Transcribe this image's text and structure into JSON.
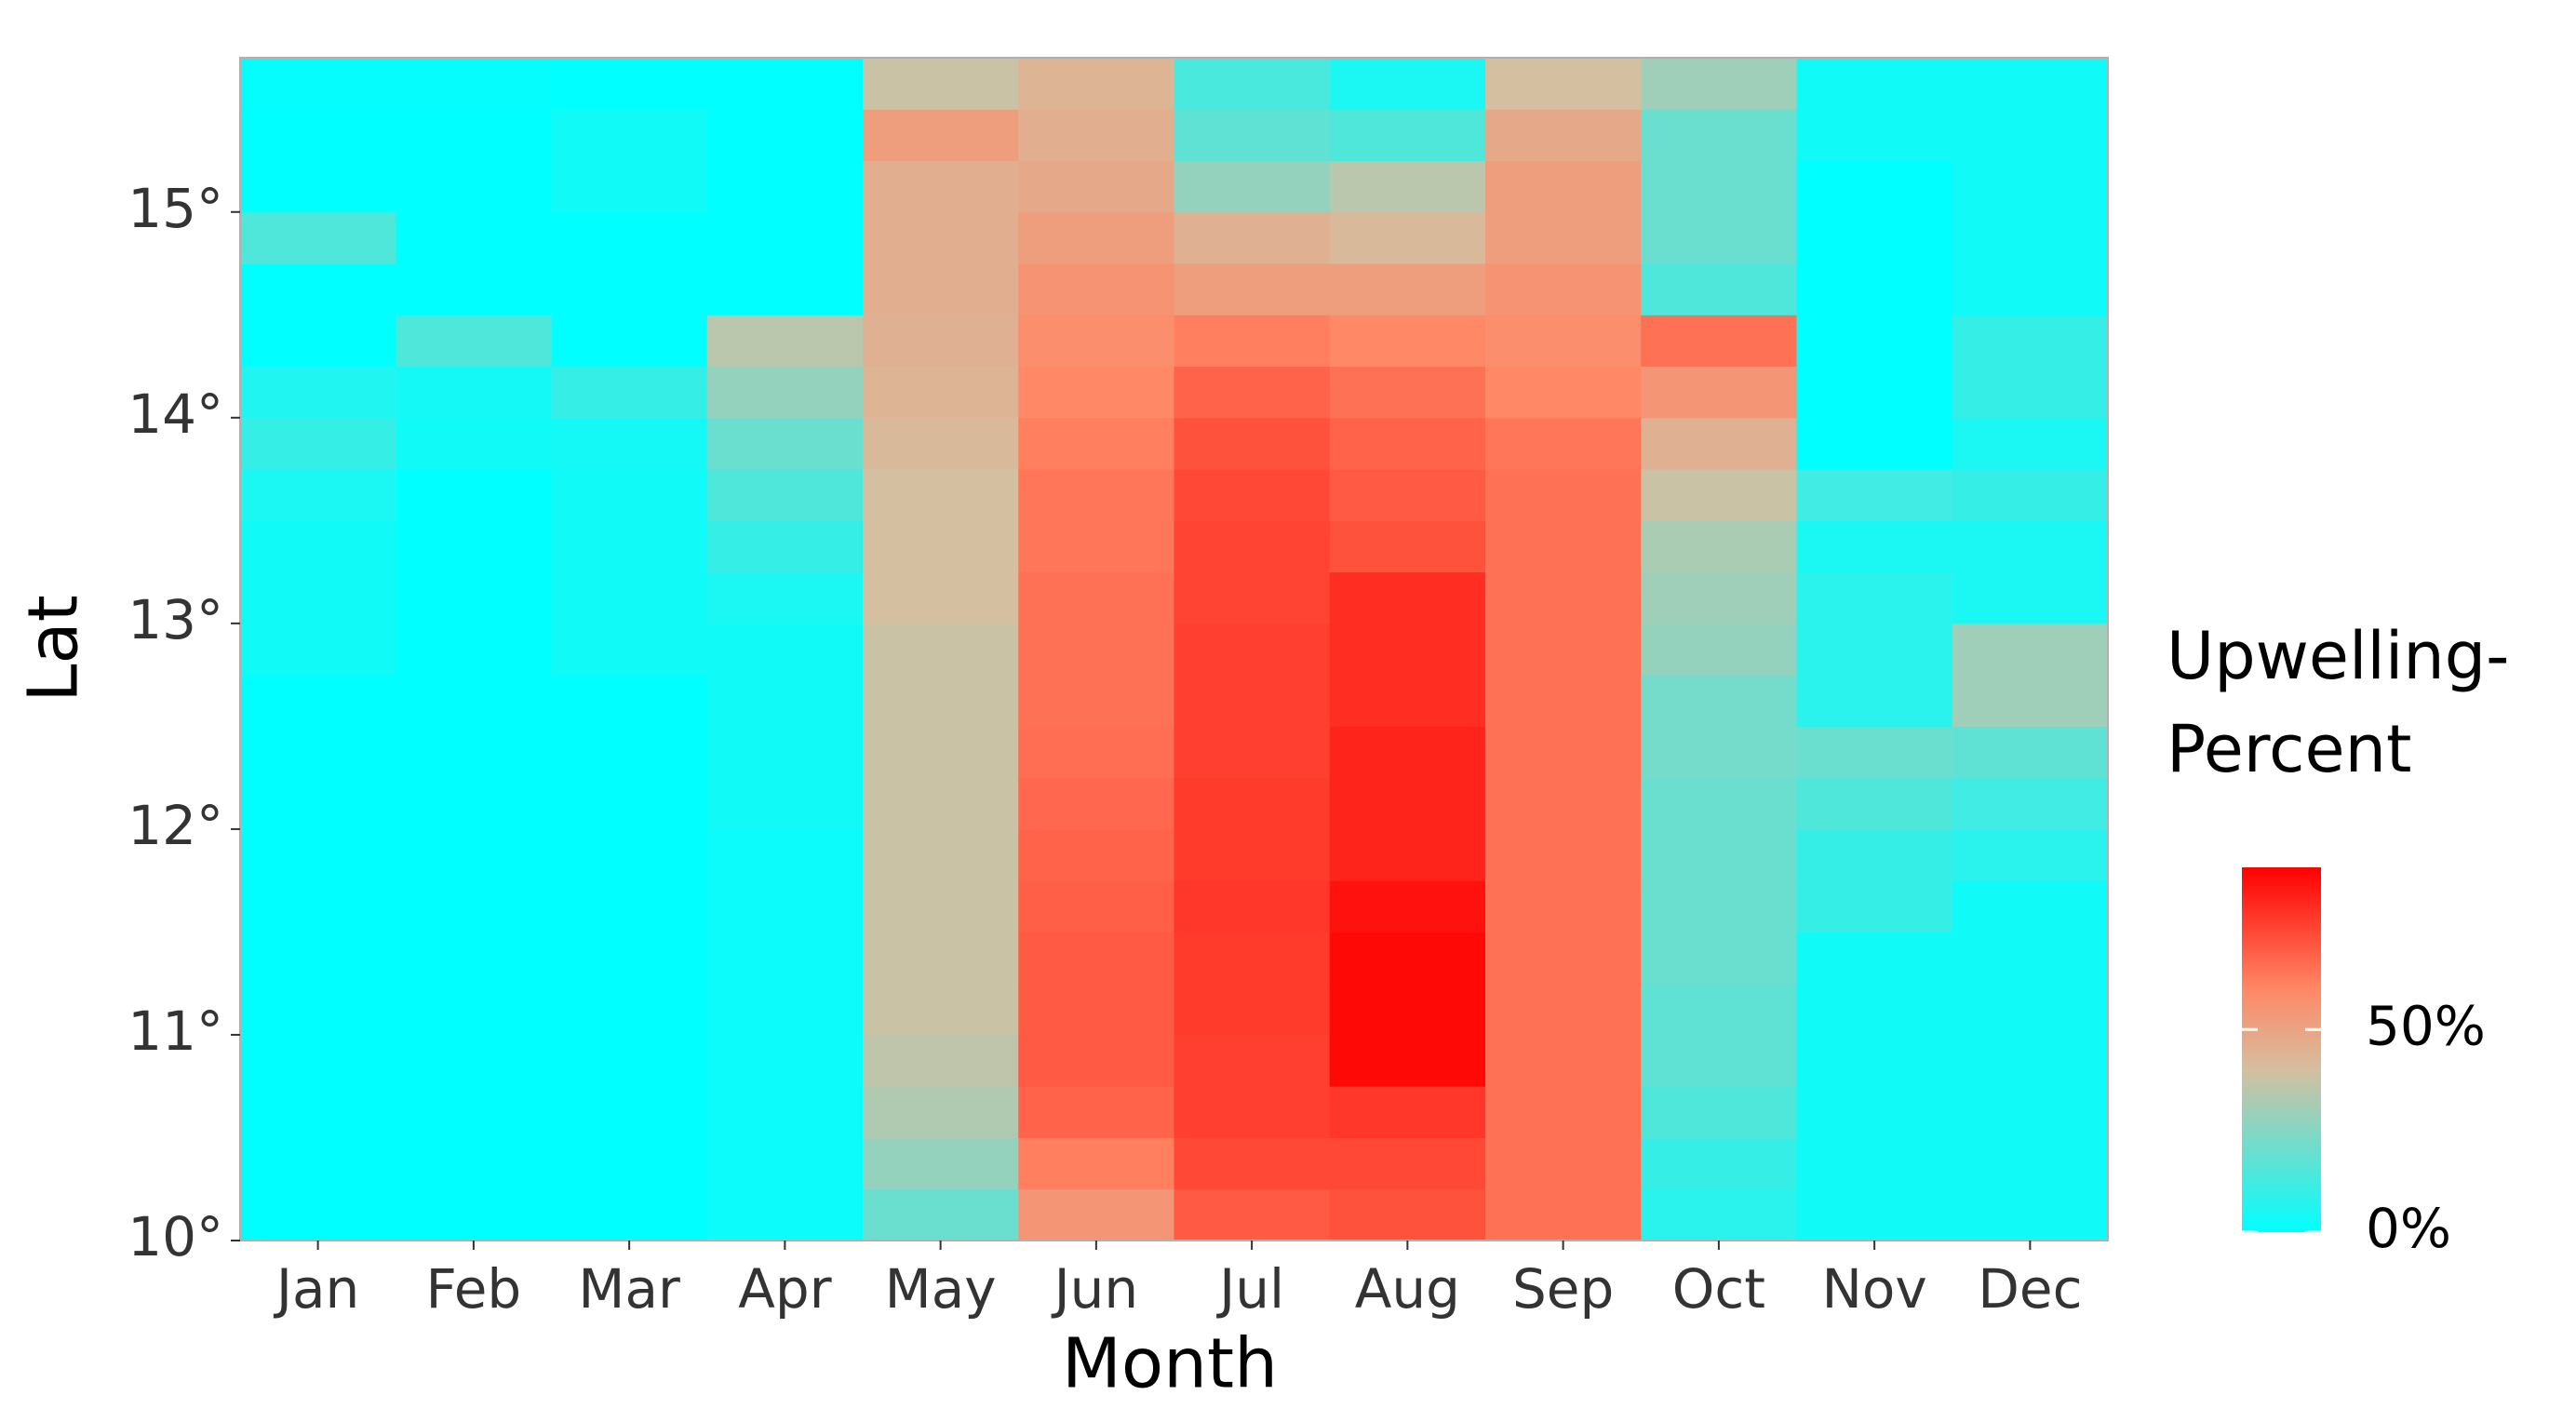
{
  "chart_data": {
    "type": "heatmap",
    "x_label": "Month",
    "y_label": "Lat",
    "legend_title": [
      "Upwelling-",
      "Percent"
    ],
    "categories": [
      "Jan",
      "Feb",
      "Mar",
      "Apr",
      "May",
      "Jun",
      "Jul",
      "Aug",
      "Sep",
      "Oct",
      "Nov",
      "Dec"
    ],
    "y": [
      10.125,
      10.375,
      10.625,
      10.875,
      11.125,
      11.375,
      11.625,
      11.875,
      12.125,
      12.375,
      12.625,
      12.875,
      13.125,
      13.375,
      13.625,
      13.875,
      14.125,
      14.375,
      14.625,
      14.875,
      15.125,
      15.375,
      15.625
    ],
    "values": [
      [
        0,
        0,
        0,
        0,
        0,
        0,
        0,
        0,
        0,
        0,
        0,
        3,
        3,
        3,
        5,
        10,
        6,
        0,
        0,
        15,
        0,
        0,
        1
      ],
      [
        0,
        0,
        0,
        0,
        0,
        0,
        0,
        0,
        0,
        0,
        0,
        0,
        0,
        0,
        0,
        3,
        4,
        15,
        0,
        0,
        0,
        0,
        1
      ],
      [
        0,
        0,
        0,
        0,
        0,
        0,
        0,
        0,
        0,
        0,
        0,
        3,
        3,
        3,
        3,
        4,
        10,
        0,
        0,
        0,
        3,
        3,
        0
      ],
      [
        2,
        2,
        2,
        2,
        2,
        2,
        2,
        2,
        3,
        3,
        3,
        3,
        5,
        10,
        15,
        20,
        28,
        35,
        0,
        0,
        0,
        0,
        0
      ],
      [
        20,
        28,
        33,
        36,
        38,
        38,
        38,
        38,
        38,
        38,
        38,
        38,
        40,
        40,
        40,
        42,
        44,
        45,
        46,
        46,
        46,
        52,
        38
      ],
      [
        55,
        62,
        68,
        70,
        70,
        70,
        69,
        68,
        67,
        66,
        65,
        65,
        65,
        64,
        64,
        62,
        60,
        58,
        56,
        52,
        48,
        46,
        44
      ],
      [
        70,
        74,
        76,
        76,
        77,
        77,
        78,
        77,
        77,
        76,
        76,
        76,
        75,
        75,
        74,
        72,
        68,
        62,
        52,
        45,
        28,
        18,
        14
      ],
      [
        72,
        74,
        78,
        88,
        88,
        88,
        86,
        82,
        82,
        82,
        80,
        80,
        80,
        72,
        70,
        68,
        65,
        60,
        52,
        42,
        35,
        15,
        5
      ],
      [
        65,
        65,
        65,
        65,
        65,
        65,
        65,
        65,
        65,
        65,
        65,
        65,
        65,
        65,
        65,
        64,
        60,
        58,
        56,
        52,
        52,
        48,
        40
      ],
      [
        8,
        10,
        15,
        18,
        18,
        20,
        20,
        20,
        20,
        22,
        22,
        28,
        30,
        32,
        38,
        45,
        55,
        65,
        15,
        20,
        20,
        20,
        30
      ],
      [
        3,
        3,
        3,
        3,
        3,
        3,
        10,
        10,
        15,
        20,
        8,
        8,
        8,
        5,
        12,
        0,
        0,
        0,
        0,
        0,
        0,
        3,
        3
      ],
      [
        3,
        3,
        3,
        3,
        3,
        3,
        3,
        8,
        12,
        18,
        30,
        30,
        5,
        5,
        10,
        5,
        10,
        10,
        3,
        3,
        3,
        3,
        3
      ]
    ],
    "ylim": [
      10,
      15.75
    ],
    "yticks": [
      {
        "value": 10,
        "label": "10°"
      },
      {
        "value": 11,
        "label": "11°"
      },
      {
        "value": 12,
        "label": "12°"
      },
      {
        "value": 13,
        "label": "13°"
      },
      {
        "value": 14,
        "label": "14°"
      },
      {
        "value": 15,
        "label": "15°"
      }
    ],
    "zlim": [
      0,
      90
    ],
    "zticks": [
      {
        "value": 0,
        "label": "0%"
      },
      {
        "value": 50,
        "label": "50%"
      }
    ],
    "colorscale": [
      {
        "value": 0,
        "color": "#00ffff"
      },
      {
        "value": 40,
        "color": "#d4bfa0"
      },
      {
        "value": 60,
        "color": "#ff8866"
      },
      {
        "value": 90,
        "color": "#ff0000"
      }
    ]
  }
}
